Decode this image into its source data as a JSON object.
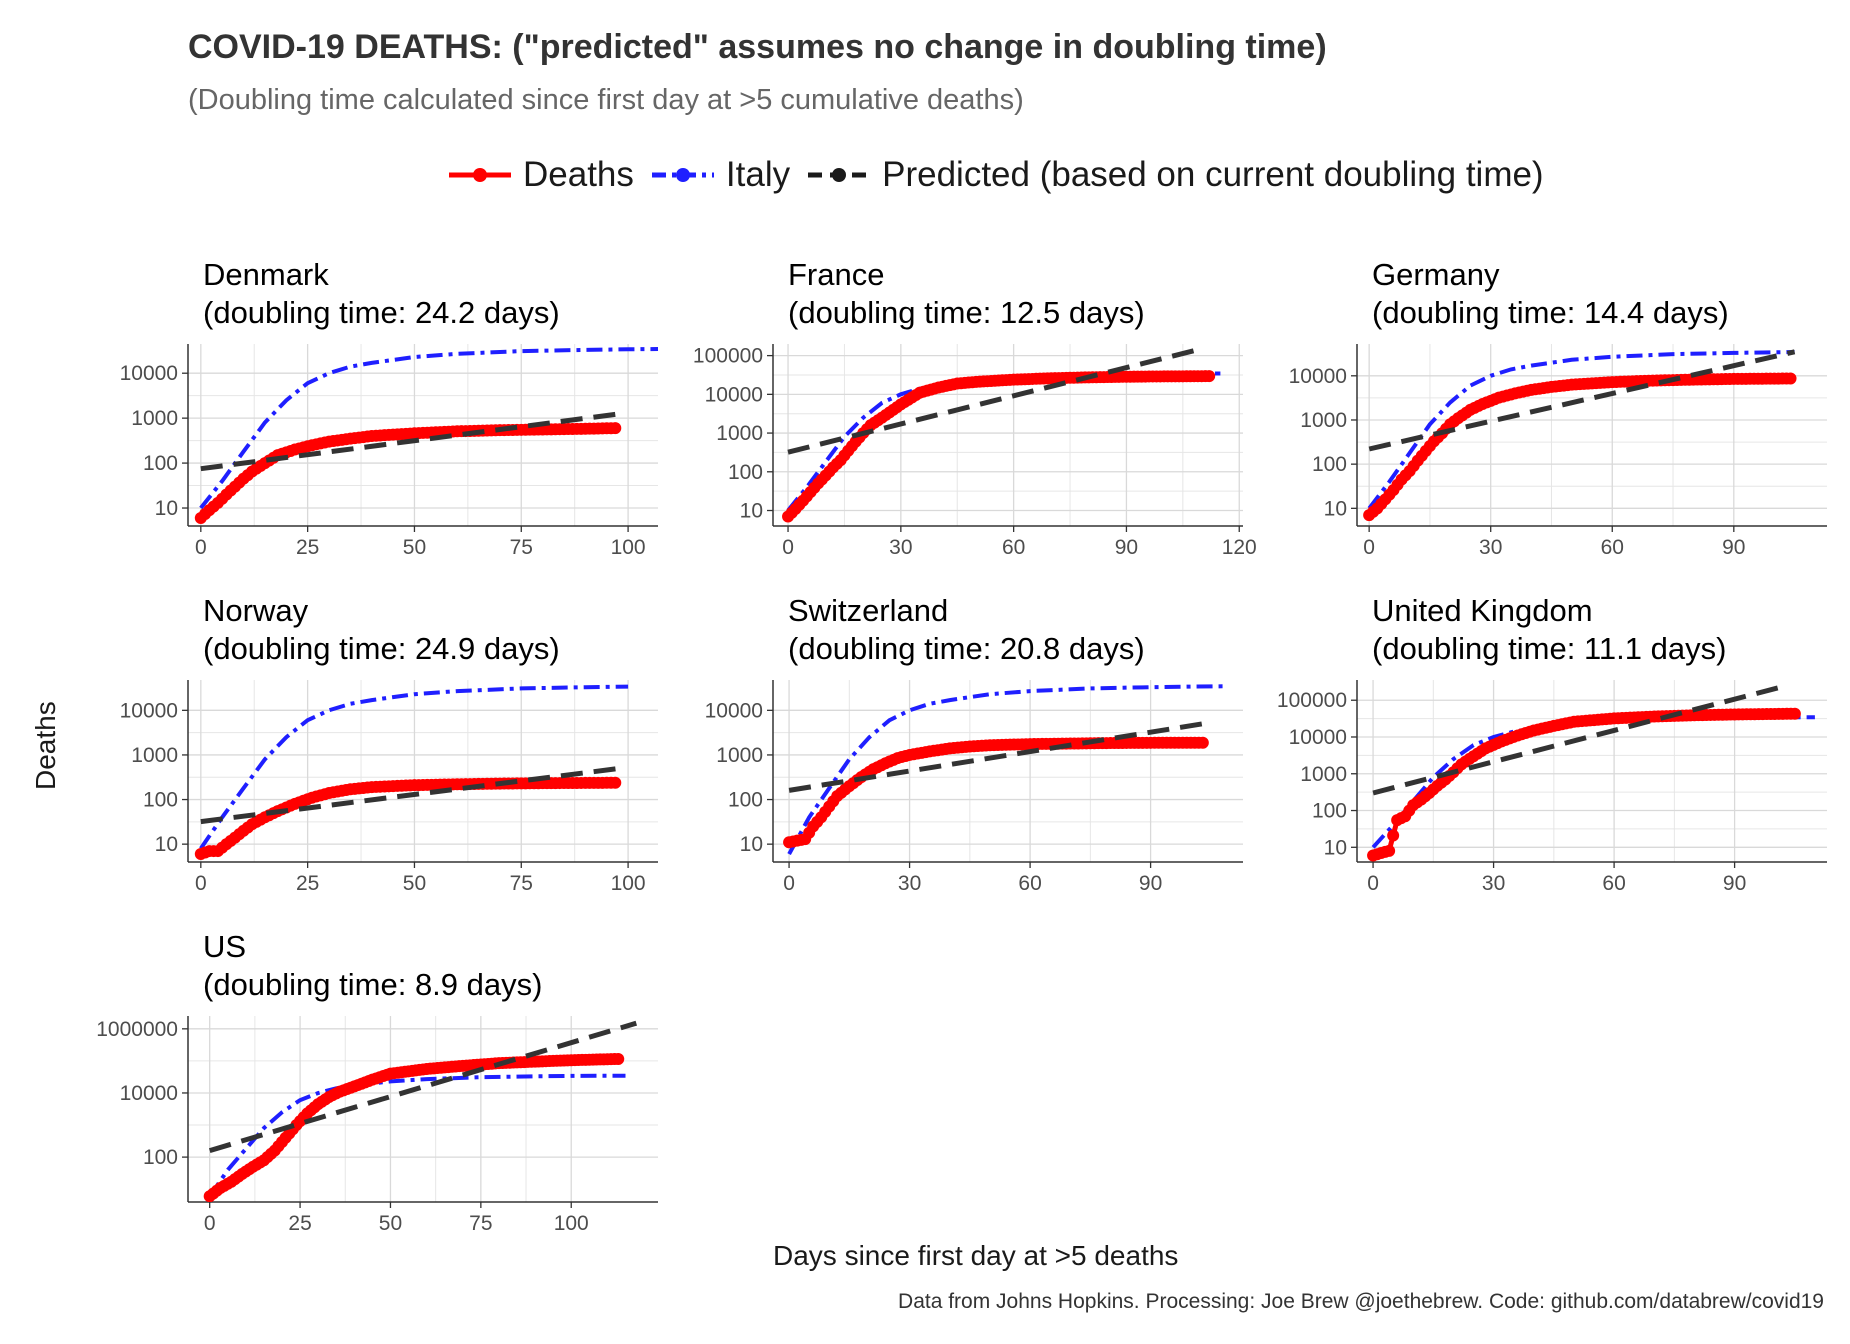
{
  "title": "COVID-19 DEATHS: (\"predicted\" assumes no change in doubling time)",
  "subtitle": "(Doubling time calculated since first day at >5 cumulative deaths)",
  "legend": {
    "items": [
      {
        "label": "Deaths",
        "color": "#ff0000",
        "style": "solid"
      },
      {
        "label": "Italy",
        "color": "#1f1fff",
        "style": "dotdash"
      },
      {
        "label": "Predicted (based on current doubling time)",
        "color": "#1a1a1a",
        "style": "dashed"
      }
    ],
    "position": "top"
  },
  "xlabel": "Days since first day at >5 deaths",
  "ylabel": "Deaths",
  "caption": "Data from Johns Hopkins. Processing: Joe Brew @joethebrew. Code: github.com/databrew/covid19",
  "colors": {
    "deaths": "#ff0000",
    "italy": "#1f1fff",
    "predicted": "#333333",
    "grid": "#d9d9d9"
  },
  "chart_data": [
    {
      "type": "line",
      "country": "Denmark",
      "title_line1": "Denmark",
      "title_line2": "(doubling time: 24.2 days)",
      "doubling_time": 24.2,
      "yscale": "log10",
      "xlim": [
        -3,
        107
      ],
      "ylim_log": [
        0.6,
        4.65
      ],
      "xticks": [
        0,
        25,
        50,
        75,
        100
      ],
      "xtick_labels": [
        "0",
        "25",
        "50",
        "75",
        "100"
      ],
      "yticks": [
        10,
        100,
        1000,
        10000
      ],
      "ytick_labels": [
        "10",
        "100",
        "1000",
        "10000"
      ],
      "deaths": {
        "x": [
          0,
          2,
          4,
          6,
          8,
          10,
          12,
          15,
          18,
          22,
          26,
          30,
          35,
          40,
          45,
          50,
          60,
          70,
          80,
          90,
          97
        ],
        "y": [
          6,
          9,
          13,
          20,
          30,
          45,
          65,
          100,
          150,
          200,
          250,
          300,
          350,
          400,
          430,
          460,
          510,
          540,
          560,
          580,
          600
        ]
      },
      "italy": {
        "x": [
          0,
          5,
          10,
          15,
          20,
          25,
          30,
          35,
          40,
          50,
          60,
          75,
          90,
          100,
          107
        ],
        "y": [
          10,
          40,
          180,
          800,
          2500,
          6000,
          10000,
          14000,
          17000,
          23000,
          27000,
          31000,
          33000,
          34000,
          34500
        ]
      },
      "predicted": {
        "x": [
          0,
          98
        ],
        "y": [
          75,
          1250
        ]
      }
    },
    {
      "type": "line",
      "country": "France",
      "title_line1": "France",
      "title_line2": "(doubling time: 12.5 days)",
      "doubling_time": 12.5,
      "yscale": "log10",
      "xlim": [
        -4,
        121
      ],
      "ylim_log": [
        0.6,
        5.3
      ],
      "xticks": [
        0,
        30,
        60,
        90,
        120
      ],
      "xtick_labels": [
        "0",
        "30",
        "60",
        "90",
        "120"
      ],
      "yticks": [
        10,
        100,
        1000,
        10000,
        100000
      ],
      "ytick_labels": [
        "10",
        "100",
        "1000",
        "10000",
        "100000"
      ],
      "deaths": {
        "x": [
          0,
          2,
          4,
          6,
          8,
          10,
          12,
          14,
          16,
          18,
          20,
          22,
          25,
          28,
          30,
          35,
          40,
          45,
          50,
          60,
          70,
          80,
          90,
          100,
          112
        ],
        "y": [
          7,
          11,
          18,
          30,
          50,
          80,
          130,
          200,
          350,
          600,
          1000,
          1600,
          2500,
          4000,
          5500,
          11000,
          15000,
          19000,
          21000,
          24000,
          26000,
          27500,
          28500,
          29000,
          29500
        ]
      },
      "italy": {
        "x": [
          0,
          5,
          10,
          15,
          20,
          25,
          30,
          35,
          40,
          50,
          60,
          75,
          90,
          100,
          112,
          115
        ],
        "y": [
          10,
          40,
          180,
          800,
          2500,
          6000,
          10000,
          14000,
          17000,
          23000,
          27000,
          31000,
          33000,
          34000,
          34500,
          34600
        ]
      },
      "predicted": {
        "x": [
          0,
          110
        ],
        "y": [
          320,
          150000
        ]
      }
    },
    {
      "type": "line",
      "country": "Germany",
      "title_line1": "Germany",
      "title_line2": "(doubling time: 14.4 days)",
      "doubling_time": 14.4,
      "yscale": "log10",
      "xlim": [
        -3,
        113
      ],
      "ylim_log": [
        0.6,
        4.72
      ],
      "xticks": [
        0,
        30,
        60,
        90
      ],
      "xtick_labels": [
        "0",
        "30",
        "60",
        "90"
      ],
      "yticks": [
        10,
        100,
        1000,
        10000
      ],
      "ytick_labels": [
        "10",
        "100",
        "1000",
        "10000"
      ],
      "deaths": {
        "x": [
          0,
          2,
          4,
          6,
          8,
          10,
          12,
          14,
          16,
          18,
          20,
          22,
          25,
          28,
          32,
          36,
          40,
          45,
          50,
          60,
          70,
          80,
          90,
          104
        ],
        "y": [
          7,
          10,
          16,
          26,
          45,
          70,
          120,
          200,
          330,
          500,
          800,
          1100,
          1700,
          2300,
          3200,
          4000,
          4800,
          5600,
          6300,
          7200,
          7800,
          8200,
          8500,
          8700
        ]
      },
      "italy": {
        "x": [
          0,
          5,
          10,
          15,
          20,
          25,
          30,
          35,
          40,
          50,
          60,
          75,
          90,
          100,
          105
        ],
        "y": [
          10,
          40,
          180,
          800,
          2500,
          6000,
          10000,
          14000,
          17000,
          23000,
          27000,
          31000,
          33000,
          34000,
          34500
        ]
      },
      "predicted": {
        "x": [
          0,
          105
        ],
        "y": [
          220,
          35000
        ]
      }
    },
    {
      "type": "line",
      "country": "Norway",
      "title_line1": "Norway",
      "title_line2": "(doubling time: 24.9 days)",
      "doubling_time": 24.9,
      "yscale": "log10",
      "xlim": [
        -3,
        107
      ],
      "ylim_log": [
        0.6,
        4.68
      ],
      "xticks": [
        0,
        25,
        50,
        75,
        100
      ],
      "xtick_labels": [
        "0",
        "25",
        "50",
        "75",
        "100"
      ],
      "yticks": [
        10,
        100,
        1000,
        10000
      ],
      "ytick_labels": [
        "10",
        "100",
        "1000",
        "10000"
      ],
      "deaths": {
        "x": [
          0,
          2,
          4,
          6,
          8,
          10,
          12,
          15,
          18,
          22,
          26,
          30,
          35,
          40,
          45,
          50,
          60,
          70,
          80,
          90,
          97
        ],
        "y": [
          6,
          7,
          7,
          10,
          14,
          20,
          28,
          40,
          55,
          80,
          110,
          140,
          170,
          190,
          200,
          210,
          220,
          228,
          233,
          236,
          238
        ]
      },
      "italy": {
        "x": [
          0,
          5,
          10,
          15,
          20,
          25,
          30,
          35,
          40,
          50,
          60,
          75,
          90,
          100
        ],
        "y": [
          8,
          40,
          180,
          800,
          2500,
          6000,
          10000,
          14000,
          17000,
          23000,
          27000,
          31000,
          33000,
          34000
        ]
      },
      "predicted": {
        "x": [
          0,
          98
        ],
        "y": [
          32,
          500
        ]
      }
    },
    {
      "type": "line",
      "country": "Switzerland",
      "title_line1": "Switzerland",
      "title_line2": "(doubling time: 20.8 days)",
      "doubling_time": 20.8,
      "yscale": "log10",
      "xlim": [
        -4,
        113
      ],
      "ylim_log": [
        0.6,
        4.68
      ],
      "xticks": [
        0,
        30,
        60,
        90
      ],
      "xtick_labels": [
        "0",
        "30",
        "60",
        "90"
      ],
      "yticks": [
        10,
        100,
        1000,
        10000
      ],
      "ytick_labels": [
        "10",
        "100",
        "1000",
        "10000"
      ],
      "deaths": {
        "x": [
          0,
          2,
          4,
          6,
          8,
          10,
          12,
          15,
          18,
          21,
          24,
          27,
          30,
          35,
          40,
          45,
          50,
          60,
          70,
          80,
          90,
          103
        ],
        "y": [
          11,
          12,
          13,
          25,
          40,
          70,
          120,
          200,
          320,
          480,
          650,
          850,
          1000,
          1200,
          1400,
          1550,
          1650,
          1750,
          1800,
          1850,
          1870,
          1880
        ]
      },
      "italy": {
        "x": [
          0,
          5,
          10,
          15,
          20,
          25,
          30,
          35,
          40,
          50,
          60,
          75,
          90,
          100,
          108
        ],
        "y": [
          6,
          40,
          180,
          800,
          2500,
          6000,
          10000,
          14000,
          17000,
          23000,
          27000,
          31000,
          33000,
          34000,
          34500
        ]
      },
      "predicted": {
        "x": [
          0,
          103
        ],
        "y": [
          160,
          5000
        ]
      }
    },
    {
      "type": "line",
      "country": "United Kingdom",
      "title_line1": "United Kingdom",
      "title_line2": "(doubling time: 11.1 days)",
      "doubling_time": 11.1,
      "yscale": "log10",
      "xlim": [
        -4,
        113
      ],
      "ylim_log": [
        0.6,
        5.55
      ],
      "xticks": [
        0,
        30,
        60,
        90
      ],
      "xtick_labels": [
        "0",
        "30",
        "60",
        "90"
      ],
      "yticks": [
        10,
        100,
        1000,
        10000,
        100000
      ],
      "ytick_labels": [
        "10",
        "100",
        "1000",
        "10000",
        "100000"
      ],
      "deaths": {
        "x": [
          0,
          2,
          4,
          6,
          8,
          10,
          12,
          14,
          16,
          18,
          20,
          22,
          25,
          28,
          32,
          36,
          40,
          45,
          50,
          60,
          70,
          80,
          90,
          105
        ],
        "y": [
          6,
          7,
          8,
          55,
          70,
          140,
          200,
          300,
          470,
          700,
          1100,
          1800,
          3000,
          4900,
          7600,
          11000,
          15000,
          20000,
          26000,
          32000,
          36000,
          39000,
          41000,
          43000
        ]
      },
      "italy": {
        "x": [
          0,
          5,
          10,
          15,
          20,
          25,
          30,
          35,
          40,
          50,
          60,
          75,
          90,
          100,
          110
        ],
        "y": [
          10,
          40,
          180,
          800,
          2500,
          6000,
          10000,
          14000,
          17000,
          23000,
          27000,
          31000,
          33000,
          34000,
          34500
        ]
      },
      "predicted": {
        "x": [
          0,
          103
        ],
        "y": [
          300,
          250000
        ]
      }
    },
    {
      "type": "line",
      "country": "US",
      "title_line1": "US",
      "title_line2": "(doubling time: 8.9 days)",
      "doubling_time": 8.9,
      "yscale": "log10",
      "xlim": [
        -6,
        124
      ],
      "ylim_log": [
        0.6,
        6.4
      ],
      "xticks": [
        0,
        25,
        50,
        75,
        100
      ],
      "xtick_labels": [
        "0",
        "25",
        "50",
        "75",
        "100"
      ],
      "yticks": [
        100,
        10000,
        1000000
      ],
      "ytick_labels": [
        "100",
        "10000",
        "1000000"
      ],
      "deaths": {
        "x": [
          0,
          3,
          6,
          9,
          12,
          15,
          18,
          21,
          24,
          27,
          30,
          33,
          36,
          40,
          45,
          50,
          60,
          70,
          80,
          90,
          100,
          113
        ],
        "y": [
          6,
          11,
          17,
          30,
          50,
          80,
          160,
          400,
          1000,
          2300,
          4500,
          7500,
          11000,
          16000,
          26000,
          40000,
          56000,
          70000,
          85000,
          95000,
          105000,
          115000
        ]
      },
      "italy": {
        "x": [
          0,
          5,
          10,
          15,
          20,
          25,
          30,
          35,
          40,
          50,
          60,
          75,
          90,
          100,
          115
        ],
        "y": [
          6,
          40,
          180,
          800,
          2500,
          6000,
          10000,
          14000,
          17000,
          23000,
          27000,
          31000,
          33000,
          34000,
          34500
        ]
      },
      "predicted": {
        "x": [
          0,
          118
        ],
        "y": [
          160,
          1500000
        ]
      }
    }
  ]
}
